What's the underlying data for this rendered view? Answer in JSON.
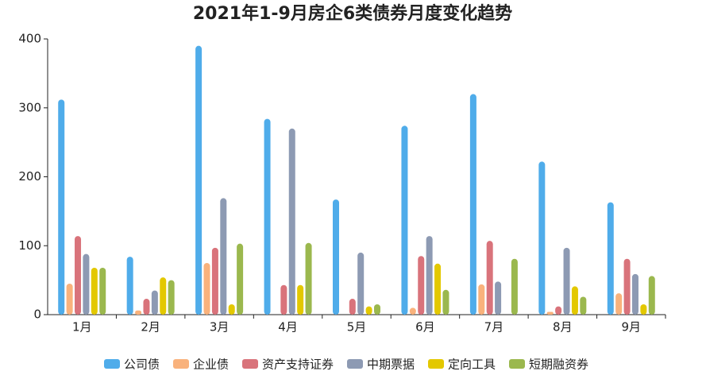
{
  "chart_data": {
    "type": "bar",
    "title": "2021年1-9月房企6类债券月度变化趋势",
    "categories": [
      "1月",
      "2月",
      "3月",
      "4月",
      "5月",
      "6月",
      "7月",
      "8月",
      "9月"
    ],
    "series": [
      {
        "name": "公司债",
        "color": "#4facea",
        "values": [
          312,
          84,
          390,
          284,
          167,
          274,
          320,
          222,
          163
        ]
      },
      {
        "name": "企业债",
        "color": "#f9b27c",
        "values": [
          45,
          6,
          75,
          0,
          0,
          10,
          44,
          4,
          31
        ]
      },
      {
        "name": "资产支持证券",
        "color": "#d9737b",
        "values": [
          114,
          23,
          97,
          43,
          23,
          85,
          107,
          12,
          81
        ]
      },
      {
        "name": "中期票据",
        "color": "#8d9ab3",
        "values": [
          88,
          35,
          169,
          270,
          90,
          114,
          48,
          97,
          59
        ]
      },
      {
        "name": "定向工具",
        "color": "#e3c800",
        "values": [
          68,
          54,
          15,
          43,
          12,
          74,
          0,
          41,
          15
        ]
      },
      {
        "name": "短期融资券",
        "color": "#9bb84e",
        "values": [
          68,
          50,
          103,
          104,
          15,
          36,
          81,
          26,
          56
        ]
      }
    ],
    "ylim": [
      0,
      400
    ],
    "yticks": [
      0,
      100,
      200,
      300,
      400
    ]
  }
}
